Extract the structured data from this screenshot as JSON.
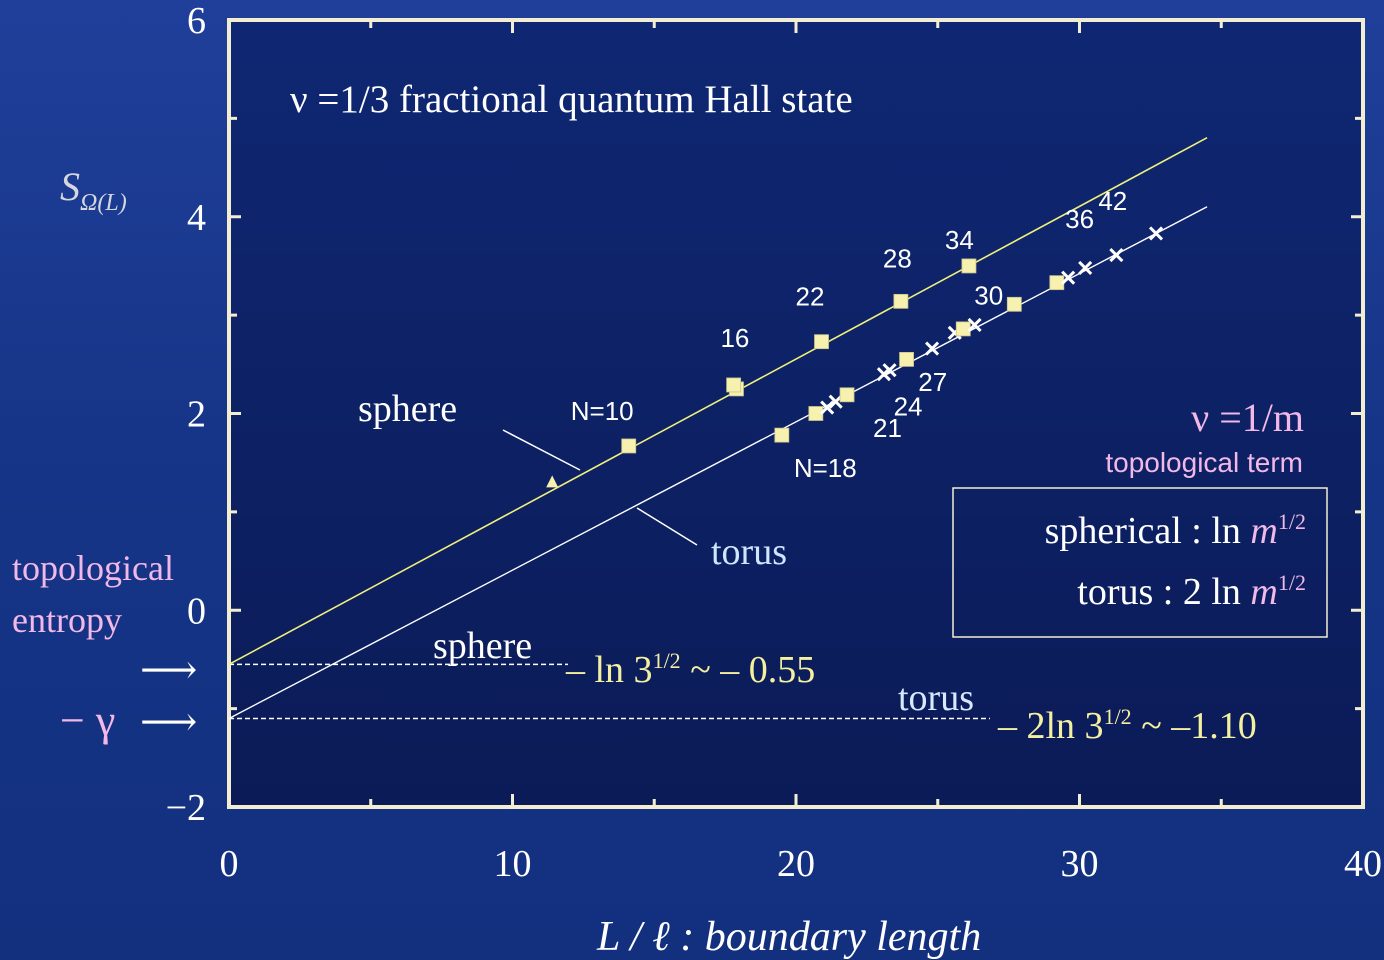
{
  "chart_data": {
    "type": "scatter",
    "title": "ν =1/3  fractional quantum Hall state",
    "xlabel": "L / ℓ : boundary length",
    "ylabel": "S",
    "ylabel_sub": "Ω(L)",
    "xlim": [
      0,
      40
    ],
    "ylim": [
      -2,
      6
    ],
    "x_ticks": [
      0,
      10,
      20,
      30,
      40
    ],
    "y_ticks": [
      -2,
      0,
      2,
      4,
      6
    ],
    "y_tick_labels": [
      "−2",
      "0",
      "2",
      "4",
      "6"
    ],
    "grid": false,
    "series": [
      {
        "name": "sphere",
        "color": "#f0f07a",
        "fit": {
          "intercept": -0.55,
          "x_end": 34.5
        },
        "points": [
          {
            "x": 11.4,
            "y": 1.3,
            "marker": "triangle",
            "label": ""
          },
          {
            "x": 14.1,
            "y": 1.67,
            "marker": "square",
            "label": "N=10"
          },
          {
            "x": 17.9,
            "y": 2.25,
            "marker": "square",
            "label": "16"
          },
          {
            "x": 17.8,
            "y": 2.29,
            "marker": "square",
            "label": ""
          },
          {
            "x": 20.9,
            "y": 2.73,
            "marker": "square",
            "label": "22"
          },
          {
            "x": 23.7,
            "y": 3.14,
            "marker": "square",
            "label": "28"
          },
          {
            "x": 26.1,
            "y": 3.5,
            "marker": "square",
            "label": "34"
          }
        ]
      },
      {
        "name": "torus",
        "color": "#ffffff",
        "fit": {
          "intercept": -1.1,
          "x_end": 34.5
        },
        "points": [
          {
            "x": 19.5,
            "y": 1.78,
            "marker": "square",
            "label": "N=18"
          },
          {
            "x": 20.7,
            "y": 2.0,
            "marker": "square",
            "label": ""
          },
          {
            "x": 21.1,
            "y": 2.06,
            "marker": "x",
            "label": ""
          },
          {
            "x": 21.4,
            "y": 2.12,
            "marker": "x",
            "label": ""
          },
          {
            "x": 21.8,
            "y": 2.19,
            "marker": "square",
            "label": "21"
          },
          {
            "x": 23.1,
            "y": 2.4,
            "marker": "x",
            "label": ""
          },
          {
            "x": 23.3,
            "y": 2.44,
            "marker": "x",
            "label": ""
          },
          {
            "x": 23.9,
            "y": 2.55,
            "marker": "square",
            "label": "24"
          },
          {
            "x": 24.8,
            "y": 2.66,
            "marker": "x",
            "label": ""
          },
          {
            "x": 25.6,
            "y": 2.82,
            "marker": "x",
            "label": ""
          },
          {
            "x": 25.9,
            "y": 2.86,
            "marker": "square",
            "label": "27"
          },
          {
            "x": 26.3,
            "y": 2.9,
            "marker": "x",
            "label": ""
          },
          {
            "x": 27.7,
            "y": 3.11,
            "marker": "square",
            "label": "30"
          },
          {
            "x": 29.2,
            "y": 3.33,
            "marker": "square",
            "label": ""
          },
          {
            "x": 29.6,
            "y": 3.38,
            "marker": "x",
            "label": ""
          },
          {
            "x": 30.2,
            "y": 3.48,
            "marker": "x",
            "label": "36"
          },
          {
            "x": 31.3,
            "y": 3.61,
            "marker": "x",
            "label": "42"
          },
          {
            "x": 32.7,
            "y": 3.83,
            "marker": "x",
            "label": ""
          }
        ]
      }
    ],
    "annotations": {
      "sphere_label": "sphere",
      "torus_label": "torus",
      "nu_general": "ν =1/m",
      "topological_term": "topological term",
      "box_line1_prefix": "spherical : ln ",
      "box_line2_prefix": "torus : 2 ln ",
      "box_var": "m",
      "box_exp": "1/2",
      "topo_entropy_1": "topological",
      "topo_entropy_2": "entropy",
      "gamma": "− γ",
      "arrow": "⟶",
      "sphere_dash_label": "sphere",
      "sphere_value_a": "– ln 3",
      "sphere_value_exp": "1/2",
      "sphere_value_b": " ~ – 0.55",
      "torus_dash_label": "torus",
      "torus_value_a": "– 2ln 3",
      "torus_value_exp": "1/2",
      "torus_value_b": " ~ –1.10"
    }
  },
  "colors": {
    "frame": "#f3eed2",
    "sphere_line": "#f0f07a",
    "torus_line": "#ffffff",
    "pink": "#f2b8e8",
    "yellow_text": "#f5f0a0",
    "light_blue_text": "#cfe6ff",
    "marker": "#f7f1b0"
  }
}
